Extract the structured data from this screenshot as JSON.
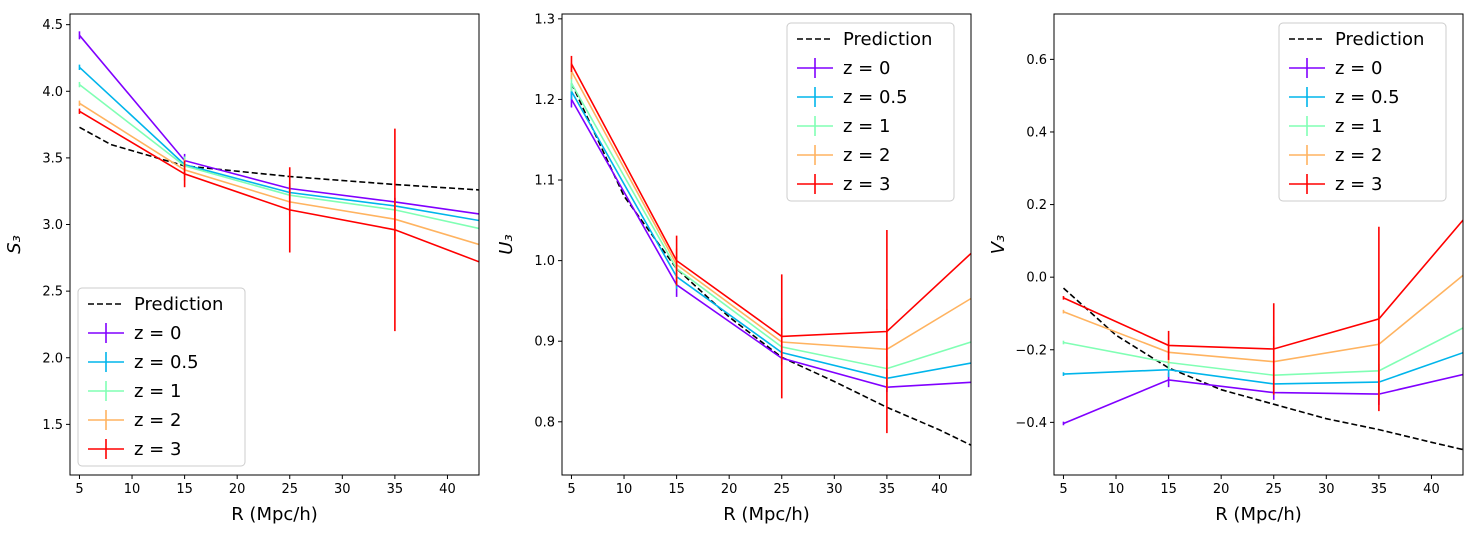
{
  "figure": {
    "legend_labels": {
      "prediction": "Prediction"
    }
  },
  "chart_data": [
    {
      "type": "line",
      "xlabel": "R (Mpc/h)",
      "ylabel": "S₃",
      "xlim": [
        4.1,
        43
      ],
      "ylim": [
        1.12,
        4.58
      ],
      "xticks": [
        5,
        10,
        15,
        20,
        25,
        30,
        35,
        40
      ],
      "yticks": [
        1.5,
        2.0,
        2.5,
        3.0,
        3.5,
        4.0,
        4.5
      ],
      "ytick_labels": [
        "1.5",
        "2.0",
        "2.5",
        "3.0",
        "3.5",
        "4.0",
        "4.5"
      ],
      "legend_position": "lower-left",
      "prediction": {
        "name": "Prediction",
        "x": [
          5,
          8,
          15,
          25,
          35,
          43
        ],
        "y": [
          3.73,
          3.6,
          3.44,
          3.36,
          3.3,
          3.26
        ]
      },
      "series": [
        {
          "name": "z = 0",
          "color": "#8000ff",
          "x": [
            5,
            15,
            25,
            35,
            43
          ],
          "y": [
            4.42,
            3.48,
            3.27,
            3.17,
            3.08
          ],
          "err": [
            0.03,
            0.05,
            0.04,
            0.03,
            0
          ]
        },
        {
          "name": "z = 0.5",
          "color": "#00b5eb",
          "x": [
            5,
            15,
            25,
            35,
            43
          ],
          "y": [
            4.18,
            3.45,
            3.24,
            3.14,
            3.03
          ],
          "err": [
            0.02,
            0.06,
            0.05,
            0.04,
            0
          ]
        },
        {
          "name": "z = 1",
          "color": "#80ffb4",
          "x": [
            5,
            15,
            25,
            35,
            43
          ],
          "y": [
            4.05,
            3.44,
            3.22,
            3.11,
            2.97
          ],
          "err": [
            0.02,
            0.07,
            0.06,
            0.05,
            0
          ]
        },
        {
          "name": "z = 2",
          "color": "#ffb360",
          "x": [
            5,
            15,
            25,
            35,
            43
          ],
          "y": [
            3.91,
            3.41,
            3.17,
            3.04,
            2.85
          ],
          "err": [
            0.02,
            0.08,
            0.1,
            0.15,
            0
          ]
        },
        {
          "name": "z = 3",
          "color": "#ff0000",
          "x": [
            5,
            15,
            25,
            35,
            43
          ],
          "y": [
            3.85,
            3.38,
            3.11,
            2.96,
            2.72
          ],
          "err": [
            0.02,
            0.1,
            0.32,
            0.76,
            0
          ]
        }
      ]
    },
    {
      "type": "line",
      "xlabel": "R (Mpc/h)",
      "ylabel": "U₃",
      "xlim": [
        4.1,
        43
      ],
      "ylim": [
        0.734,
        1.306
      ],
      "xticks": [
        5,
        10,
        15,
        20,
        25,
        30,
        35,
        40
      ],
      "yticks": [
        0.8,
        0.9,
        1.0,
        1.1,
        1.2,
        1.3
      ],
      "ytick_labels": [
        "0.8",
        "0.9",
        "1.0",
        "1.1",
        "1.2",
        "1.3"
      ],
      "legend_position": "upper-right",
      "prediction": {
        "name": "Prediction",
        "x": [
          5,
          10,
          15,
          20,
          25,
          30,
          35,
          40,
          43
        ],
        "y": [
          1.22,
          1.08,
          0.99,
          0.93,
          0.88,
          0.85,
          0.818,
          0.79,
          0.771
        ]
      },
      "series": [
        {
          "name": "z = 0",
          "color": "#8000ff",
          "x": [
            5,
            15,
            25,
            35,
            43
          ],
          "y": [
            1.2,
            0.97,
            0.879,
            0.843,
            0.849
          ],
          "err": [
            0.01,
            0.015,
            0.008,
            0.006,
            0
          ]
        },
        {
          "name": "z = 0.5",
          "color": "#00b5eb",
          "x": [
            5,
            15,
            25,
            35,
            43
          ],
          "y": [
            1.21,
            0.98,
            0.886,
            0.854,
            0.873
          ],
          "err": [
            0.01,
            0.015,
            0.01,
            0.01,
            0
          ]
        },
        {
          "name": "z = 1",
          "color": "#80ffb4",
          "x": [
            5,
            15,
            25,
            35,
            43
          ],
          "y": [
            1.22,
            0.99,
            0.893,
            0.866,
            0.899
          ],
          "err": [
            0.01,
            0.015,
            0.015,
            0.015,
            0
          ]
        },
        {
          "name": "z = 2",
          "color": "#ffb360",
          "x": [
            5,
            15,
            25,
            35,
            43
          ],
          "y": [
            1.235,
            0.995,
            0.899,
            0.89,
            0.953
          ],
          "err": [
            0.01,
            0.02,
            0.03,
            0.05,
            0
          ]
        },
        {
          "name": "z = 3",
          "color": "#ff0000",
          "x": [
            5,
            15,
            25,
            35,
            43
          ],
          "y": [
            1.244,
            1.0,
            0.906,
            0.912,
            1.009
          ],
          "err": [
            0.01,
            0.031,
            0.077,
            0.126,
            0
          ]
        }
      ]
    },
    {
      "type": "line",
      "xlabel": "R (Mpc/h)",
      "ylabel": "V₃",
      "xlim": [
        4.1,
        43
      ],
      "ylim": [
        -0.545,
        0.725
      ],
      "xticks": [
        5,
        10,
        15,
        20,
        25,
        30,
        35,
        40
      ],
      "yticks": [
        -0.4,
        -0.2,
        0.0,
        0.2,
        0.4,
        0.6
      ],
      "ytick_labels": [
        "−0.4",
        "−0.2",
        "0.0",
        "0.2",
        "0.4",
        "0.6"
      ],
      "legend_position": "upper-right",
      "prediction": {
        "name": "Prediction",
        "x": [
          5,
          10,
          15,
          20,
          25,
          30,
          35,
          40,
          43
        ],
        "y": [
          -0.03,
          -0.16,
          -0.25,
          -0.31,
          -0.35,
          -0.39,
          -0.42,
          -0.455,
          -0.475
        ]
      },
      "series": [
        {
          "name": "z = 0",
          "color": "#8000ff",
          "x": [
            5,
            15,
            25,
            35,
            43
          ],
          "y": [
            -0.403,
            -0.283,
            -0.318,
            -0.322,
            -0.268
          ],
          "err": [
            0.005,
            0.02,
            0.02,
            0.03,
            0
          ]
        },
        {
          "name": "z = 0.5",
          "color": "#00b5eb",
          "x": [
            5,
            15,
            25,
            35,
            43
          ],
          "y": [
            -0.267,
            -0.255,
            -0.294,
            -0.289,
            -0.208
          ],
          "err": [
            0.005,
            0.02,
            0.03,
            0.05,
            0
          ]
        },
        {
          "name": "z = 1",
          "color": "#80ffb4",
          "x": [
            5,
            15,
            25,
            35,
            43
          ],
          "y": [
            -0.18,
            -0.235,
            -0.27,
            -0.258,
            -0.14
          ],
          "err": [
            0.005,
            0.02,
            0.04,
            0.08,
            0
          ]
        },
        {
          "name": "z = 2",
          "color": "#ffb360",
          "x": [
            5,
            15,
            25,
            35,
            43
          ],
          "y": [
            -0.095,
            -0.207,
            -0.233,
            -0.185,
            0.005
          ],
          "err": [
            0.005,
            0.03,
            0.07,
            0.15,
            0
          ]
        },
        {
          "name": "z = 3",
          "color": "#ff0000",
          "x": [
            5,
            15,
            25,
            35,
            43
          ],
          "y": [
            -0.057,
            -0.188,
            -0.198,
            -0.115,
            0.157
          ],
          "err": [
            0.005,
            0.04,
            0.126,
            0.254,
            0
          ]
        }
      ]
    }
  ]
}
